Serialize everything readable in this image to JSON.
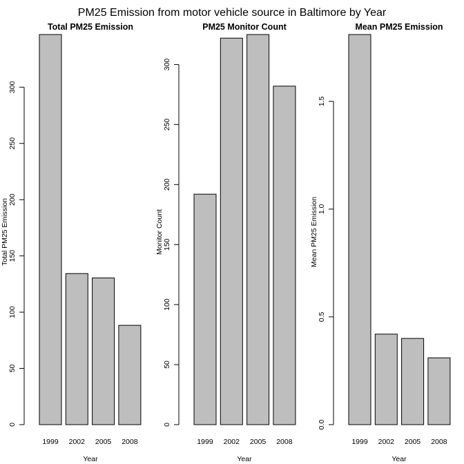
{
  "title": "PM25 Emission from motor vehicle source in Baltimore by Year",
  "chart_data": [
    {
      "type": "bar",
      "title": "Total PM25 Emission",
      "xlabel": "Year",
      "ylabel": "Total PM25 Emission",
      "categories": [
        "1999",
        "2002",
        "2005",
        "2008"
      ],
      "values": [
        346.8,
        134.3,
        130.4,
        88.3
      ],
      "ylim": [
        0,
        346.8
      ],
      "yticks": [
        0,
        50,
        100,
        150,
        200,
        250,
        300
      ],
      "grid": false,
      "bar_color": "#bebebe"
    },
    {
      "type": "bar",
      "title": "PM25 Monitor Count",
      "xlabel": "Year",
      "ylabel": "Monitor Count",
      "categories": [
        "1999",
        "2002",
        "2005",
        "2008"
      ],
      "values": [
        192,
        322,
        325,
        282
      ],
      "ylim": [
        0,
        325
      ],
      "yticks": [
        0,
        50,
        100,
        150,
        200,
        250,
        300
      ],
      "grid": false,
      "bar_color": "#bebebe"
    },
    {
      "type": "bar",
      "title": "Mean PM25 Emission",
      "xlabel": "Year",
      "ylabel": "Mean PM25 Emission",
      "categories": [
        "1999",
        "2002",
        "2005",
        "2008"
      ],
      "values": [
        1.81,
        0.42,
        0.4,
        0.31
      ],
      "ylim": [
        0,
        1.81
      ],
      "yticks": [
        0.0,
        0.5,
        1.0,
        1.5
      ],
      "ytick_labels": [
        "0.0",
        "0.5",
        "1.0",
        "1.5"
      ],
      "grid": false,
      "bar_color": "#bebebe"
    }
  ]
}
